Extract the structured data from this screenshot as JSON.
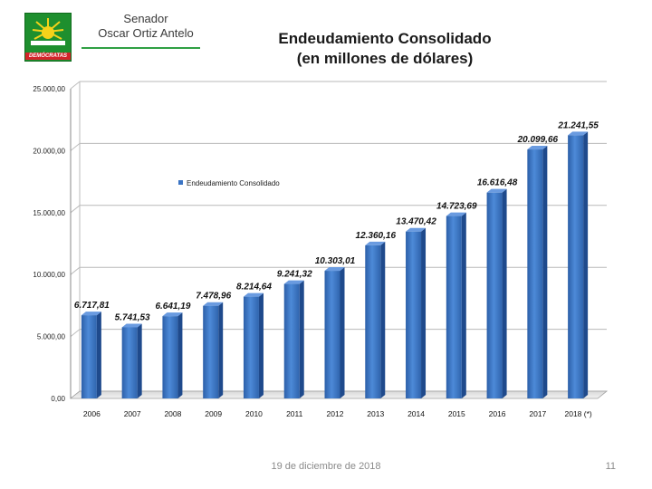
{
  "header": {
    "senator_label": "Senador",
    "senator_name": "Oscar Ortiz Antelo",
    "logo_text": "DEMÓCRATAS",
    "brand_green": "#1e8f2e",
    "brand_red": "#d4242a"
  },
  "chart_data": {
    "type": "bar",
    "title": "Endeudamiento Consolidado",
    "subtitle": "(en millones de dólares)",
    "categories": [
      "2006",
      "2007",
      "2008",
      "2009",
      "2010",
      "2011",
      "2012",
      "2013",
      "2014",
      "2015",
      "2016",
      "2017",
      "2018 (*)"
    ],
    "series": [
      {
        "name": "Endeudamiento Consolidado",
        "values": [
          6717.81,
          5741.53,
          6641.19,
          7478.96,
          8214.64,
          9241.32,
          10303.01,
          12360.16,
          13470.42,
          14723.69,
          16616.48,
          20099.66,
          21241.55
        ],
        "labels": [
          "6.717,81",
          "5.741,53",
          "6.641,19",
          "7.478,96",
          "8.214,64",
          "9.241,32",
          "10.303,01",
          "12.360,16",
          "13.470,42",
          "14.723,69",
          "16.616,48",
          "20.099,66",
          "21.241,55"
        ],
        "color": "#3a74c4"
      }
    ],
    "ylim": [
      0,
      25000
    ],
    "yticks": [
      0,
      5000,
      10000,
      15000,
      20000,
      25000
    ],
    "ytick_labels": [
      "0,00",
      "5.000,00",
      "10.000,00",
      "15.000,00",
      "20.000,00",
      "25.000,00"
    ],
    "xlabel": "",
    "ylabel": "",
    "grid": true,
    "legend_position": "top-left"
  },
  "footer": {
    "date": "19 de diciembre de 2018",
    "page": "11"
  }
}
